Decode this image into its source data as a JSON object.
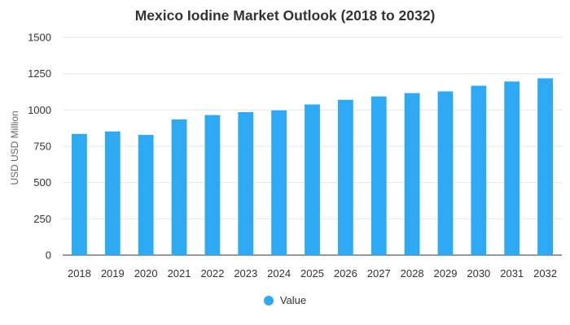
{
  "colors": {
    "bar": "#2eaaf5",
    "grid": "#e6e6e6",
    "axis": "#333333"
  },
  "chart_data": {
    "type": "bar",
    "title": "Mexico Iodine Market Outlook (2018 to 2032)",
    "xlabel": "",
    "ylabel": "USD USD Million",
    "categories": [
      "2018",
      "2019",
      "2020",
      "2021",
      "2022",
      "2023",
      "2024",
      "2025",
      "2026",
      "2027",
      "2028",
      "2029",
      "2030",
      "2031",
      "2032"
    ],
    "series": [
      {
        "name": "Value",
        "values": [
          835,
          852,
          828,
          935,
          965,
          985,
          997,
          1038,
          1070,
          1093,
          1116,
          1128,
          1167,
          1196,
          1218
        ]
      }
    ],
    "ylim": [
      0,
      1500
    ],
    "yticks": [
      0,
      250,
      500,
      750,
      1000,
      1250,
      1500
    ],
    "grid": true,
    "legend_position": "bottom"
  }
}
